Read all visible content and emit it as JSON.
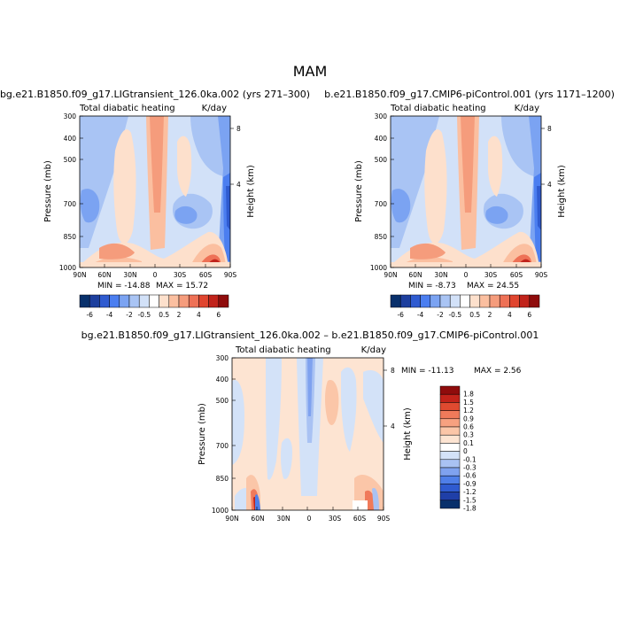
{
  "figure_title": "MAM",
  "colors": {
    "palette_main": [
      "#08306b",
      "#1d3f9e",
      "#2f5bd0",
      "#4b7ef0",
      "#7ba3f2",
      "#a9c4f4",
      "#d2e1f8",
      "#ffffff",
      "#fde0cc",
      "#fbbfa0",
      "#f59c7c",
      "#ee7156",
      "#e0452f",
      "#c1231b",
      "#8f0c0c"
    ],
    "palette_diff": [
      "#08306b",
      "#1f3fa8",
      "#2f5bd0",
      "#4f7fe8",
      "#7fa2ef",
      "#a9c2f3",
      "#d3e2f8",
      "#ffffff",
      "#fde4d2",
      "#fbc6a8",
      "#f7a180",
      "#f07a5a",
      "#e04a30",
      "#c2231a",
      "#8f0c0c"
    ]
  },
  "chart_data": [
    {
      "type": "heatmap",
      "run_title": "bg.e21.B1850.f09_g17.LIGtransient_126.0ka.002 (yrs 271–300)",
      "variable": "Total diabatic heating",
      "units": "K/day",
      "xticks": [
        "90N",
        "60N",
        "30N",
        "0",
        "30S",
        "60S",
        "90S"
      ],
      "xlim": [
        90,
        -90
      ],
      "yticks": [
        "300",
        "400",
        "500",
        "700",
        "850",
        "1000"
      ],
      "ylim": [
        1000,
        300
      ],
      "ylabel": "Pressure (mb)",
      "y2label": "Height (km)",
      "y2ticks": [
        "8",
        "4"
      ],
      "min_label": "MIN = -14.88",
      "max_label": "MAX = 15.72",
      "colorbar_labels": [
        "-6",
        "-4",
        "-2",
        "-0.5",
        "0.5",
        "2",
        "4",
        "6"
      ]
    },
    {
      "type": "heatmap",
      "run_title": "b.e21.B1850.f09_g17.CMIP6-piControl.001 (yrs 1171–1200)",
      "variable": "Total diabatic heating",
      "units": "K/day",
      "xticks": [
        "90N",
        "60N",
        "30N",
        "0",
        "30S",
        "60S",
        "90S"
      ],
      "xlim": [
        90,
        -90
      ],
      "yticks": [
        "300",
        "400",
        "500",
        "700",
        "850",
        "1000"
      ],
      "ylim": [
        1000,
        300
      ],
      "ylabel": "Pressure (mb)",
      "y2label": "Height (km)",
      "y2ticks": [
        "8",
        "4"
      ],
      "min_label": "MIN = -8.73",
      "max_label": "MAX = 24.55",
      "colorbar_labels": [
        "-6",
        "-4",
        "-2",
        "-0.5",
        "0.5",
        "2",
        "4",
        "6"
      ]
    },
    {
      "type": "heatmap",
      "run_title": "bg.e21.B1850.f09_g17.LIGtransient_126.0ka.002 – b.e21.B1850.f09_g17.CMIP6-piControl.001",
      "variable": "Total diabatic heating",
      "units": "K/day",
      "xticks": [
        "90N",
        "60N",
        "30N",
        "0",
        "30S",
        "60S",
        "90S"
      ],
      "xlim": [
        90,
        -90
      ],
      "yticks": [
        "300",
        "400",
        "500",
        "700",
        "850",
        "1000"
      ],
      "ylim": [
        1000,
        300
      ],
      "ylabel": "Pressure (mb)",
      "y2label": "Height (km)",
      "y2ticks": [
        "8",
        "4"
      ],
      "min_label": "MIN = -11.13",
      "max_label": "MAX = 2.56",
      "colorbar_labels": [
        "1.8",
        "1.5",
        "1.2",
        "0.9",
        "0.6",
        "0.3",
        "0.1",
        "0",
        "-0.1",
        "-0.3",
        "-0.6",
        "-0.9",
        "-1.2",
        "-1.5",
        "-1.8"
      ]
    }
  ]
}
